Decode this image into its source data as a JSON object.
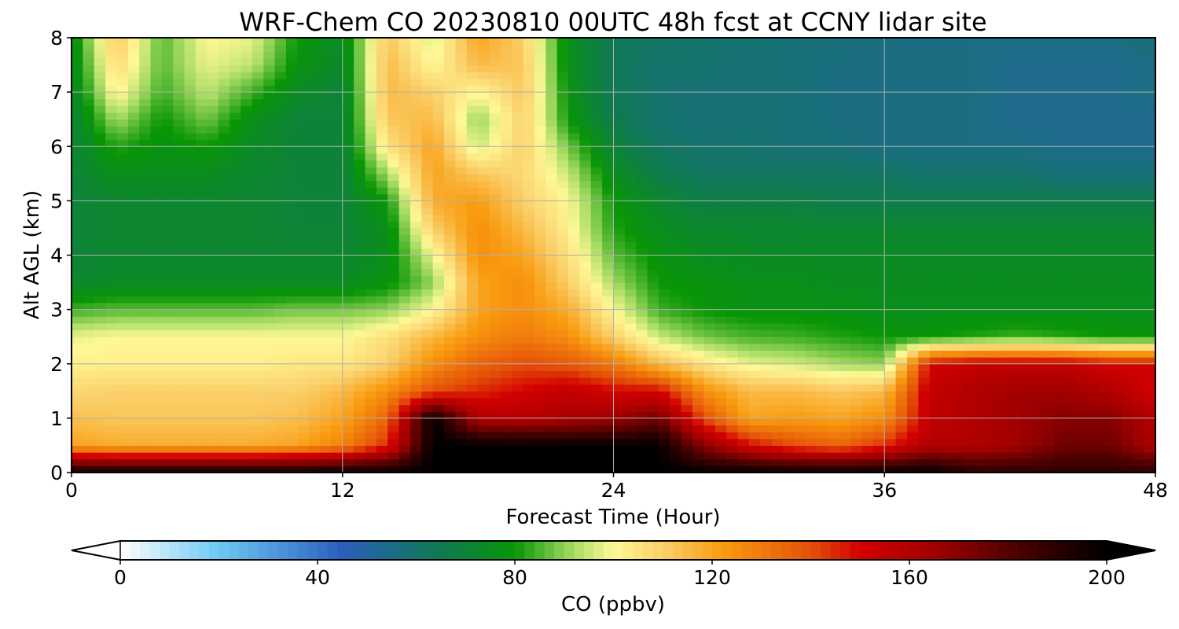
{
  "chart_data": {
    "type": "heatmap",
    "title": "WRF-Chem CO  20230810 00UTC 48h fcst at CCNY lidar site",
    "xlabel": "Forecast Time (Hour)",
    "ylabel": "Alt AGL (km)",
    "xlim": [
      0,
      48
    ],
    "ylim": [
      0,
      8
    ],
    "xticks": [
      "0",
      "12",
      "24",
      "36",
      "48"
    ],
    "yticks": [
      "0",
      "1",
      "2",
      "3",
      "4",
      "5",
      "6",
      "7",
      "8"
    ],
    "grid": true,
    "x": [
      0,
      2,
      4,
      6,
      8,
      10,
      12,
      14,
      16,
      18,
      20,
      22,
      24,
      26,
      28,
      30,
      32,
      34,
      36,
      38,
      40,
      42,
      44,
      46,
      48
    ],
    "y": [
      0,
      0.5,
      1,
      1.5,
      2,
      2.5,
      3,
      3.5,
      4,
      4.5,
      5,
      5.5,
      6,
      6.5,
      7,
      7.5,
      8
    ],
    "z": [
      [
        200,
        200,
        200,
        200,
        200,
        200,
        200,
        200,
        200,
        200,
        200,
        200,
        200,
        200,
        200,
        200,
        200,
        200,
        200,
        200,
        190,
        190,
        190,
        190,
        190
      ],
      [
        120,
        118,
        118,
        118,
        118,
        120,
        128,
        145,
        200,
        200,
        200,
        200,
        200,
        200,
        170,
        150,
        140,
        135,
        145,
        160,
        160,
        165,
        175,
        175,
        160
      ],
      [
        114,
        112,
        112,
        112,
        112,
        114,
        120,
        135,
        200,
        160,
        158,
        162,
        165,
        175,
        140,
        120,
        122,
        120,
        125,
        155,
        160,
        165,
        170,
        170,
        160
      ],
      [
        108,
        110,
        110,
        110,
        110,
        110,
        115,
        125,
        140,
        145,
        150,
        155,
        150,
        150,
        125,
        115,
        115,
        112,
        115,
        155,
        160,
        165,
        165,
        160,
        150
      ],
      [
        102,
        102,
        102,
        102,
        102,
        104,
        104,
        110,
        125,
        135,
        140,
        138,
        130,
        115,
        105,
        98,
        96,
        92,
        90,
        150,
        155,
        155,
        155,
        150,
        150
      ],
      [
        98,
        100,
        100,
        100,
        100,
        100,
        100,
        106,
        116,
        125,
        130,
        125,
        110,
        95,
        88,
        85,
        84,
        82,
        80,
        80,
        82,
        84,
        82,
        80,
        80
      ],
      [
        84,
        86,
        86,
        86,
        86,
        88,
        88,
        90,
        100,
        120,
        125,
        118,
        100,
        84,
        80,
        78,
        78,
        77,
        76,
        76,
        76,
        76,
        76,
        76,
        76
      ],
      [
        72,
        74,
        74,
        74,
        74,
        74,
        74,
        78,
        90,
        120,
        125,
        110,
        92,
        80,
        78,
        76,
        76,
        75,
        75,
        75,
        75,
        75,
        75,
        75,
        75
      ],
      [
        70,
        72,
        72,
        72,
        72,
        72,
        72,
        76,
        98,
        125,
        120,
        106,
        86,
        78,
        75,
        74,
        74,
        74,
        74,
        74,
        74,
        74,
        74,
        74,
        74
      ],
      [
        70,
        72,
        72,
        72,
        72,
        70,
        70,
        76,
        110,
        125,
        115,
        102,
        82,
        75,
        72,
        72,
        72,
        72,
        72,
        72,
        72,
        72,
        72,
        72,
        72
      ],
      [
        70,
        72,
        72,
        72,
        72,
        70,
        70,
        80,
        118,
        122,
        110,
        100,
        80,
        72,
        68,
        68,
        68,
        66,
        66,
        66,
        66,
        66,
        66,
        66,
        66
      ],
      [
        70,
        76,
        75,
        75,
        72,
        70,
        70,
        92,
        120,
        112,
        108,
        95,
        75,
        66,
        62,
        62,
        62,
        62,
        62,
        60,
        60,
        60,
        58,
        58,
        58
      ],
      [
        70,
        82,
        78,
        80,
        74,
        70,
        70,
        105,
        120,
        95,
        110,
        88,
        70,
        62,
        60,
        60,
        58,
        58,
        56,
        56,
        56,
        56,
        54,
        54,
        54
      ],
      [
        70,
        92,
        80,
        88,
        76,
        70,
        70,
        112,
        115,
        90,
        110,
        80,
        66,
        60,
        58,
        58,
        58,
        56,
        56,
        56,
        56,
        54,
        54,
        54,
        54
      ],
      [
        72,
        102,
        84,
        94,
        84,
        74,
        70,
        115,
        110,
        100,
        112,
        78,
        64,
        60,
        58,
        58,
        58,
        56,
        56,
        56,
        56,
        54,
        54,
        54,
        56
      ],
      [
        74,
        108,
        86,
        98,
        94,
        78,
        72,
        115,
        100,
        115,
        112,
        76,
        64,
        60,
        60,
        58,
        58,
        56,
        56,
        56,
        56,
        54,
        54,
        54,
        56
      ],
      [
        76,
        112,
        86,
        100,
        98,
        80,
        74,
        112,
        96,
        120,
        110,
        76,
        64,
        62,
        60,
        60,
        58,
        58,
        56,
        56,
        56,
        56,
        56,
        56,
        58
      ]
    ],
    "colorbar": {
      "label": "CO  (ppbv)",
      "ticks": [
        "0",
        "40",
        "80",
        "120",
        "160",
        "200"
      ],
      "range": [
        0,
        200
      ],
      "extend": "both",
      "stops": [
        {
          "v": 0,
          "c": "#ffffff"
        },
        {
          "v": 20,
          "c": "#6cc8f4"
        },
        {
          "v": 45,
          "c": "#2a5fbd"
        },
        {
          "v": 65,
          "c": "#0f7a52"
        },
        {
          "v": 80,
          "c": "#089606"
        },
        {
          "v": 92,
          "c": "#a8dc62"
        },
        {
          "v": 100,
          "c": "#fff896"
        },
        {
          "v": 110,
          "c": "#fad06a"
        },
        {
          "v": 122,
          "c": "#f99b10"
        },
        {
          "v": 140,
          "c": "#e45008"
        },
        {
          "v": 150,
          "c": "#d20000"
        },
        {
          "v": 165,
          "c": "#a10000"
        },
        {
          "v": 180,
          "c": "#540000"
        },
        {
          "v": 200,
          "c": "#000000"
        }
      ]
    }
  }
}
